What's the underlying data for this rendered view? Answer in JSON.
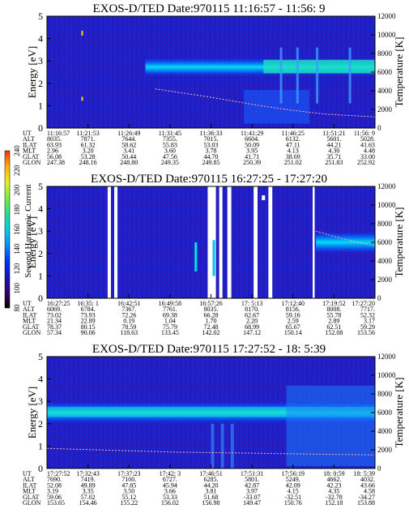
{
  "chart_data": {
    "type": "heatmap",
    "colorbar": {
      "label": "Second Harmonic Current",
      "ticks": [
        "80",
        "100",
        "120",
        "140",
        "160",
        "180",
        "200",
        "220",
        "240"
      ],
      "range": [
        80,
        240
      ],
      "colors": [
        "#000000",
        "#3a006a",
        "#1a10c0",
        "#0033ff",
        "#0090ff",
        "#00d0e0",
        "#20e090",
        "#7af040",
        "#e8f020",
        "#ffb000",
        "#ff3000"
      ]
    },
    "panels": [
      {
        "title": "EXOS-D/TED   Date:970115  11:16:57 - 11:56: 9",
        "ylabel": "Energy [eV]",
        "ylabel_right": "Temperature [K]",
        "ylim": [
          0,
          5
        ],
        "y_ticks": [
          "0",
          "1",
          "2",
          "3",
          "4",
          "5"
        ],
        "y2lim": [
          0,
          12000
        ],
        "y2_ticks": [
          "0",
          "2000",
          "4000",
          "6000",
          "8000",
          "10000",
          "12000"
        ],
        "row_labels": [
          "UT",
          "ALT",
          "ILAT",
          "MLT",
          "GLAT",
          "GLON"
        ],
        "ticks": [
          [
            "11:16:57",
            "8035.",
            "63.93",
            "2.96",
            "56.08",
            "247.38"
          ],
          [
            "11:21:53",
            "7871.",
            "61.32",
            "3.20",
            "53.28",
            "248.16"
          ],
          [
            "11:26:49",
            "7644.",
            "58.62",
            "3.41",
            "50.44",
            "248.80"
          ],
          [
            "11:31:45",
            "7355.",
            "55.83",
            "3.60",
            "47.56",
            "249.35"
          ],
          [
            "11:36:33",
            "7015.",
            "53.03",
            "3.78",
            "44.70",
            "249.85"
          ],
          [
            "11:41:29",
            "6604.",
            "50.09",
            "3.95",
            "41.71",
            "250.39"
          ],
          [
            "11:46:25",
            "6132.",
            "47.11",
            "4.13",
            "38.69",
            "251.02"
          ],
          [
            "11:51:21",
            "5601.",
            "44.21",
            "4.30",
            "35.71",
            "251.83"
          ],
          [
            "11:56: 9",
            "5028.",
            "41.63",
            "4.48",
            "33.00",
            "252.92"
          ]
        ],
        "temperature_trace": [
          [
            0.33,
            4200
          ],
          [
            0.5,
            3300
          ],
          [
            0.65,
            2400
          ],
          [
            0.75,
            1900
          ],
          [
            0.85,
            1500
          ],
          [
            1.0,
            1200
          ]
        ]
      },
      {
        "title": "EXOS-D/TED   Date:970115  16:27:25 - 17:27:20",
        "ylabel": "Energy [eV]",
        "ylabel_right": "Temperature [K]",
        "ylim": [
          0,
          5
        ],
        "y_ticks": [
          "0",
          "1",
          "2",
          "3",
          "4",
          "5"
        ],
        "y2lim": [
          0,
          12000
        ],
        "y2_ticks": [
          "0",
          "2000",
          "4000",
          "6000",
          "8000",
          "10000",
          "12000"
        ],
        "row_labels": [
          "UT",
          "ALT",
          "ILAT",
          "MLT",
          "GLAT",
          "GLON"
        ],
        "ticks": [
          [
            "16:27:25",
            "6069.",
            "73.02",
            "21.34",
            "78.37",
            "57.34"
          ],
          [
            "16:35: 1",
            "6784.",
            "73.93",
            "22.89",
            "80.15",
            "90.06"
          ],
          [
            "16:42:51",
            "7367.",
            "72.26",
            "0.19",
            "78.59",
            "118.63"
          ],
          [
            "16:49:58",
            "7761.",
            "69.38",
            "1.04",
            "75.79",
            "133.45"
          ],
          [
            "16:57:26",
            "8035.",
            "66.28",
            "1.70",
            "72.48",
            "142.02"
          ],
          [
            "17: 5:13",
            "8170.",
            "62.67",
            "2.20",
            "68.99",
            "147.12"
          ],
          [
            "17:12:40",
            "8156.",
            "59.16",
            "2.59",
            "65.67",
            "150.14"
          ],
          [
            "17:19:52",
            "8008.",
            "55.78",
            "2.89",
            "62.51",
            "152.08"
          ],
          [
            "17:27:20",
            "7717.",
            "52.32",
            "3.17",
            "59.29",
            "153.56"
          ]
        ],
        "temperature_trace": [
          [
            0.82,
            7200
          ],
          [
            0.9,
            6400
          ],
          [
            1.0,
            5600
          ]
        ]
      },
      {
        "title": "EXOS-D/TED   Date:970115  17:27:52 - 18: 5:39",
        "ylabel": "Energy [eV]",
        "ylabel_right": "Temperature [K]",
        "ylim": [
          0,
          5
        ],
        "y_ticks": [
          "0",
          "1",
          "2",
          "3",
          "4",
          "5"
        ],
        "y2lim": [
          0,
          12000
        ],
        "y2_ticks": [
          "0",
          "2000",
          "4000",
          "6000",
          "8000",
          "10000",
          "12000"
        ],
        "row_labels": [
          "UT",
          "ALT",
          "ILAT",
          "MLT",
          "GLAT",
          "GLON"
        ],
        "ticks": [
          [
            "17:27:52",
            "7690.",
            "52.08",
            "3.19",
            "59.06",
            "153.65"
          ],
          [
            "17:32:43",
            "7419.",
            "49.89",
            "3.35",
            "57.02",
            "154.46"
          ],
          [
            "17:37:23",
            "7100.",
            "47.85",
            "3.50",
            "55.12",
            "155.22"
          ],
          [
            "17:42: 3",
            "6727.",
            "45.94",
            "3.66",
            "53.33",
            "156.02"
          ],
          [
            "17:46:51",
            "6285.",
            "44.20",
            "3.81",
            "51.68",
            "156.98"
          ],
          [
            "17:51:31",
            "5801.",
            "42.87",
            "3.97",
            "-33.07",
            "149.47"
          ],
          [
            "17:56:19",
            "5249.",
            "42.09",
            "4.15",
            "-32.51",
            "150.76"
          ],
          [
            "18: 0:59",
            "4662.",
            "42.23",
            "4.35",
            "-32.78",
            "152.18"
          ],
          [
            "18: 5:39",
            "4032.",
            "43.66",
            "4.58",
            "-34.27",
            "153.88"
          ]
        ],
        "temperature_trace": [
          [
            0.0,
            2150
          ],
          [
            0.2,
            1950
          ],
          [
            0.4,
            1750
          ],
          [
            0.6,
            1650
          ],
          [
            0.8,
            1550
          ],
          [
            1.0,
            1450
          ]
        ]
      }
    ]
  }
}
